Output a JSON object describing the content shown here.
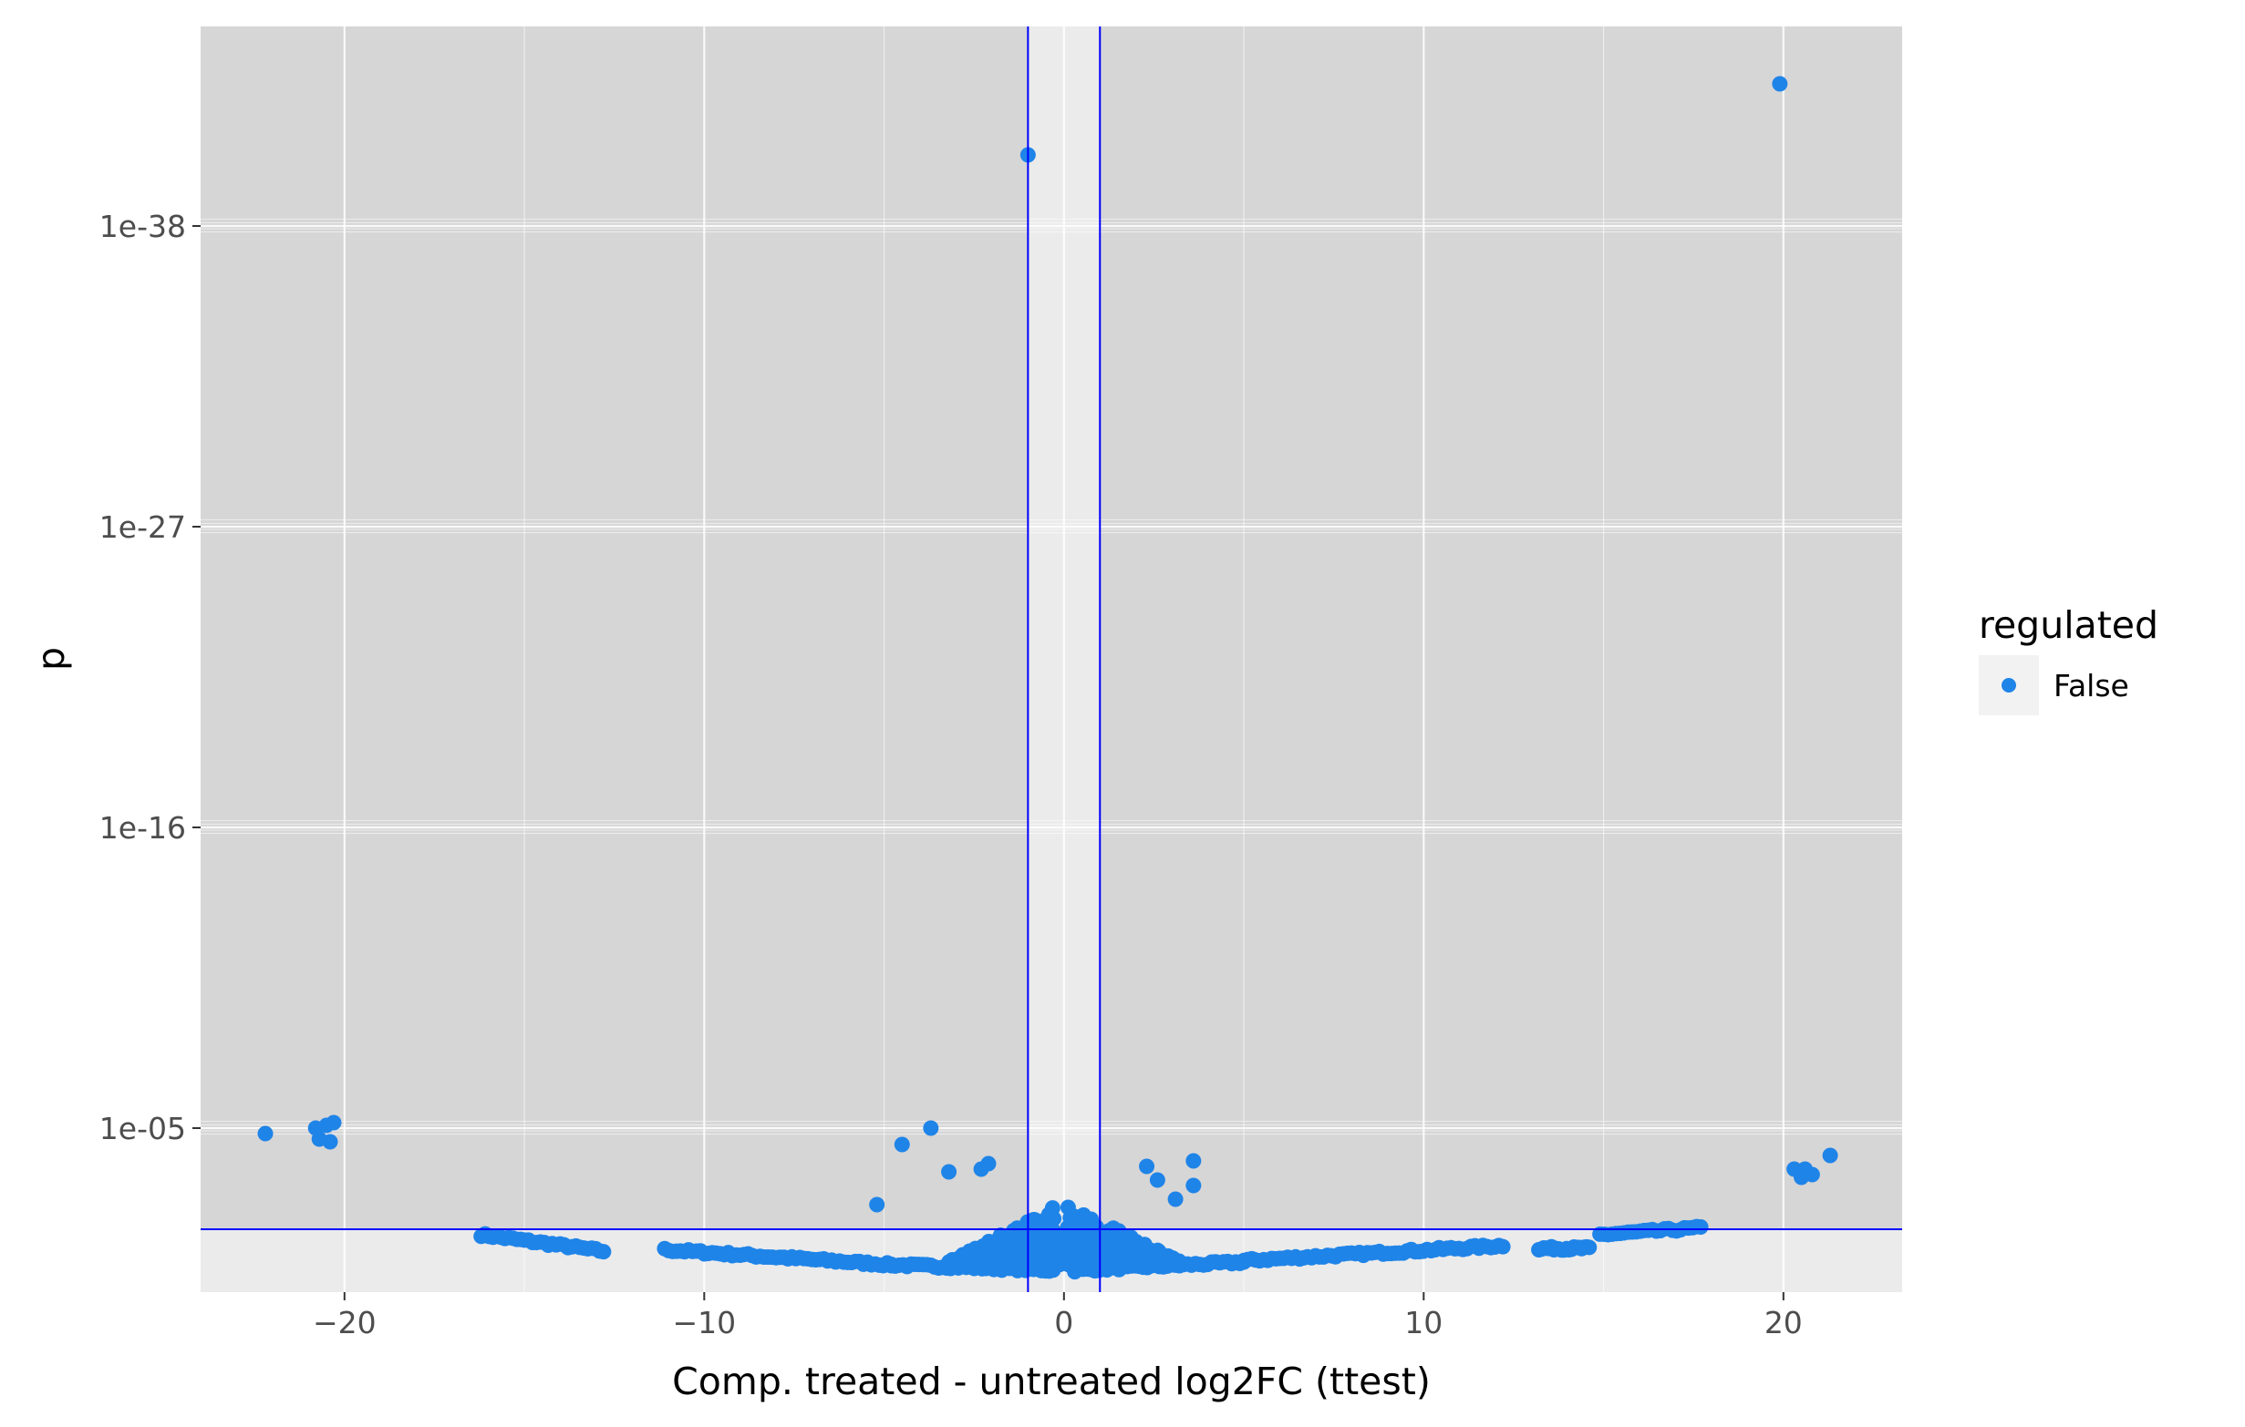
{
  "chart_data": {
    "type": "scatter",
    "xlabel": "Comp. treated - untreated log2FC (ttest)",
    "ylabel": "p",
    "y_scale": "log10 reversed",
    "xlim": [
      -24.0,
      23.3
    ],
    "ylim_log10_neglog": [
      -1.0,
      45.3
    ],
    "x_ticks": [
      -20,
      -10,
      0,
      10,
      20
    ],
    "x_tick_labels": [
      "−20",
      "−10",
      "0",
      "10",
      "20"
    ],
    "y_ticks_neglog10": [
      5,
      16,
      27,
      38
    ],
    "y_tick_labels": [
      "1e-05",
      "1e-16",
      "1e-27",
      "1e-38"
    ],
    "threshold_lines": {
      "x": [
        -1,
        1
      ],
      "y_neglog10": [
        1.3
      ]
    },
    "grid": true,
    "legend": {
      "title": "regulated",
      "placement": "right",
      "entries": [
        {
          "label": "False",
          "color": "#1f84e8"
        }
      ]
    },
    "colors": {
      "points": "#1f84e8",
      "threshold": "#0000ff",
      "panel_shade": "#d6d6d6",
      "panel_light": "#ebebeb",
      "grid": "#ffffff"
    },
    "series": [
      {
        "name": "False",
        "outliers": [
          {
            "x": 19.9,
            "neglog10p": 43.2
          },
          {
            "x": -1.0,
            "neglog10p": 40.6
          },
          {
            "x": -22.2,
            "neglog10p": 4.8
          },
          {
            "x": -20.8,
            "neglog10p": 5.0
          },
          {
            "x": -20.5,
            "neglog10p": 5.1
          },
          {
            "x": -20.3,
            "neglog10p": 5.2
          },
          {
            "x": -20.7,
            "neglog10p": 4.6
          },
          {
            "x": -20.4,
            "neglog10p": 4.5
          },
          {
            "x": -4.5,
            "neglog10p": 4.4
          },
          {
            "x": -3.7,
            "neglog10p": 5.0
          },
          {
            "x": -3.2,
            "neglog10p": 3.4
          },
          {
            "x": -5.2,
            "neglog10p": 2.2
          },
          {
            "x": -2.3,
            "neglog10p": 3.5
          },
          {
            "x": -2.1,
            "neglog10p": 3.7
          },
          {
            "x": 2.3,
            "neglog10p": 3.6
          },
          {
            "x": 3.6,
            "neglog10p": 3.8
          },
          {
            "x": 3.6,
            "neglog10p": 2.9
          },
          {
            "x": 2.6,
            "neglog10p": 3.1
          },
          {
            "x": 3.1,
            "neglog10p": 2.4
          },
          {
            "x": 20.3,
            "neglog10p": 3.5
          },
          {
            "x": 20.5,
            "neglog10p": 3.2
          },
          {
            "x": 20.6,
            "neglog10p": 3.5
          },
          {
            "x": 20.8,
            "neglog10p": 3.3
          },
          {
            "x": 21.3,
            "neglog10p": 4.0
          }
        ],
        "bulk_segments": [
          {
            "x": [
              -16.2,
              -12.8
            ],
            "neglog10p": [
              1.1,
              0.5
            ]
          },
          {
            "x": [
              -11.1,
              -4.8
            ],
            "neglog10p": [
              0.55,
              0.0
            ]
          },
          {
            "x": [
              -4.8,
              -0.3
            ],
            "neglog10p": [
              0.0,
              -0.2
            ]
          },
          {
            "x": [
              0.3,
              5.0
            ],
            "neglog10p": [
              -0.2,
              0.1
            ]
          },
          {
            "x": [
              5.0,
              12.2
            ],
            "neglog10p": [
              0.15,
              0.7
            ]
          },
          {
            "x": [
              13.2,
              14.6
            ],
            "neglog10p": [
              0.6,
              0.6
            ]
          },
          {
            "x": [
              14.9,
              17.7
            ],
            "neglog10p": [
              1.1,
              1.35
            ]
          }
        ],
        "center_cloud": [
          {
            "x": [
              -3.2,
              -0.1
            ],
            "neglog10p": [
              0.0,
              2.3
            ]
          },
          {
            "x": [
              0.1,
              3.2
            ],
            "neglog10p": [
              0.0,
              2.3
            ]
          }
        ]
      }
    ]
  }
}
